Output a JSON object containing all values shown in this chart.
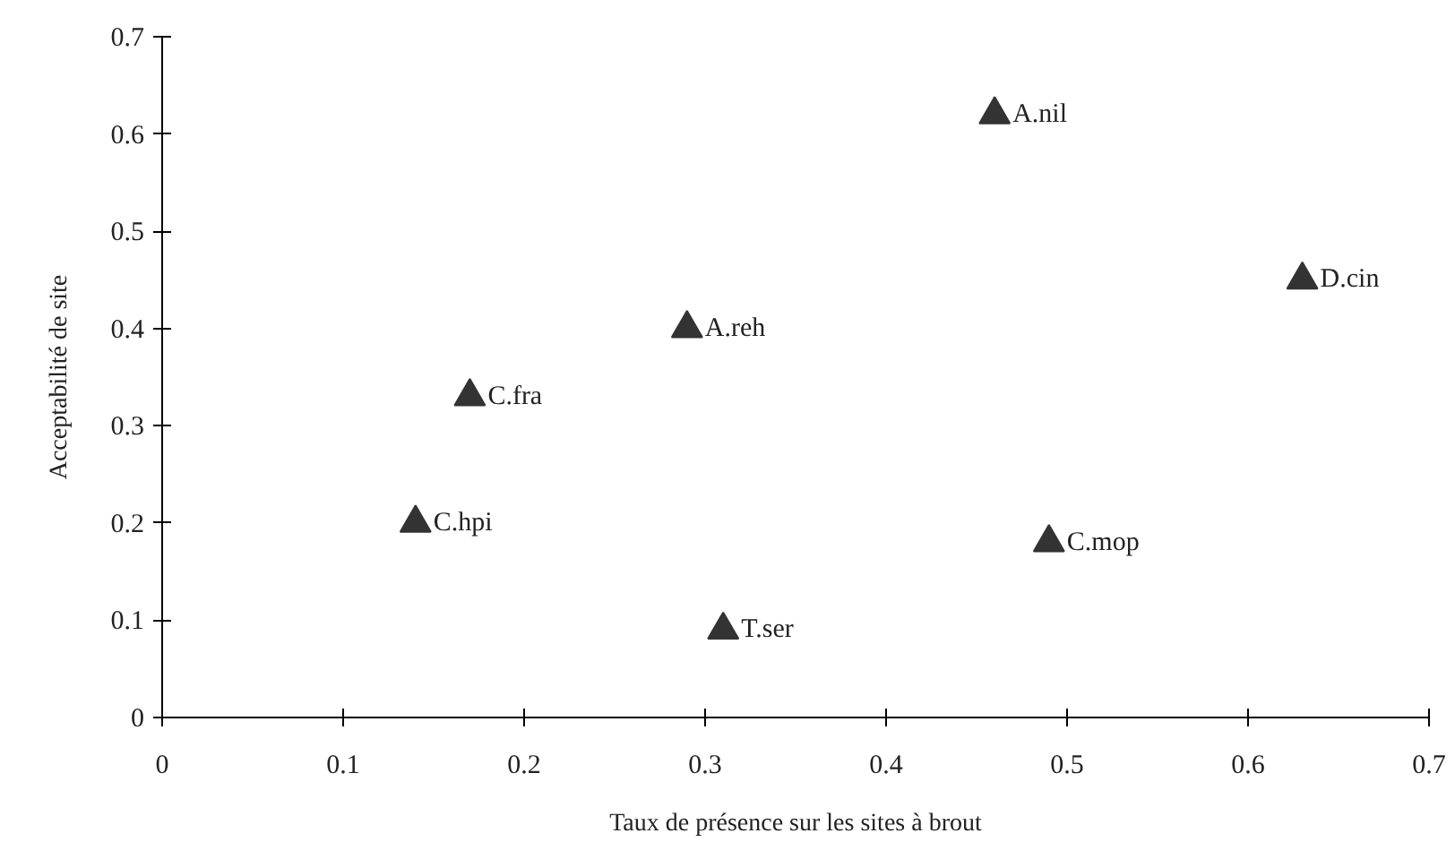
{
  "chart_data": {
    "type": "scatter",
    "xlabel": "Taux de présence sur les sites à brout",
    "ylabel": "Acceptabilité de site",
    "x": [
      0.46,
      0.63,
      0.29,
      0.17,
      0.14,
      0.49,
      0.31
    ],
    "series": [
      {
        "color": "#333333",
        "values": [
          0.62,
          0.45,
          0.4,
          0.33,
          0.2,
          0.18,
          0.09
        ]
      }
    ],
    "xlim": [
      0,
      0.7
    ],
    "ylim": [
      0,
      0.7
    ],
    "xticks": [
      0,
      0.1,
      0.2,
      0.3,
      0.4,
      0.5,
      0.6,
      0.7
    ],
    "yticks": [
      0,
      0.1,
      0.2,
      0.3,
      0.4,
      0.5,
      0.6,
      0.7
    ],
    "grid": false,
    "marker": "triangle",
    "annotations": [
      {
        "text": "A.nil",
        "x": 0.46,
        "y": 0.62
      },
      {
        "text": "D.cin",
        "x": 0.63,
        "y": 0.45
      },
      {
        "text": "A.reh",
        "x": 0.29,
        "y": 0.4
      },
      {
        "text": "C.fra",
        "x": 0.17,
        "y": 0.33
      },
      {
        "text": "C.hpi",
        "x": 0.14,
        "y": 0.2
      },
      {
        "text": "C.mop",
        "x": 0.49,
        "y": 0.18
      },
      {
        "text": "T.ser",
        "x": 0.31,
        "y": 0.09
      }
    ]
  }
}
